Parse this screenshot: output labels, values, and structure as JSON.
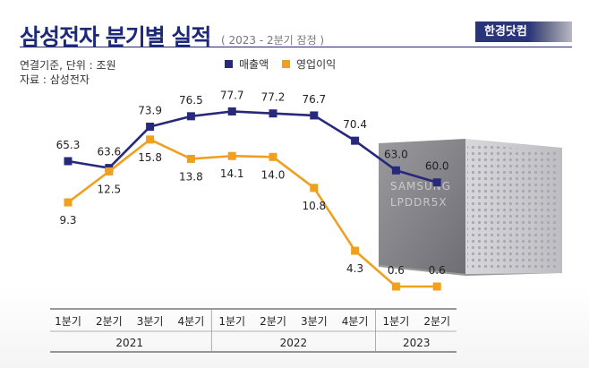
{
  "header": {
    "title": "삼성전자 분기별 실적",
    "subtitle": "( 2023 - 2분기 잠정 )",
    "brand": "한경닷컴",
    "note_basis": "연결기준, 단위 : 조원",
    "note_source": "자료 : 삼성전자"
  },
  "chip": {
    "maker": "SAMSUNG",
    "model": "LPDDR5X"
  },
  "colors": {
    "revenue": "#28297a",
    "profit": "#f0a020",
    "title": "#1e2a78"
  },
  "chart_data": {
    "type": "line",
    "categories": [
      "1분기",
      "2분기",
      "3분기",
      "4분기",
      "1분기",
      "2분기",
      "3분기",
      "4분기",
      "1분기",
      "2분기"
    ],
    "years": [
      {
        "label": "2021",
        "span": 4
      },
      {
        "label": "2022",
        "span": 4
      },
      {
        "label": "2023",
        "span": 2
      }
    ],
    "series": [
      {
        "name": "매출액",
        "values": [
          65.3,
          63.6,
          73.9,
          76.5,
          77.7,
          77.2,
          76.7,
          70.4,
          63.0,
          60.0
        ],
        "labels": [
          "65.3",
          "63.6",
          "73.9",
          "76.5",
          "77.7",
          "77.2",
          "76.7",
          "70.4",
          "63.0",
          "60.0"
        ]
      },
      {
        "name": "영업이익",
        "values": [
          9.3,
          12.5,
          15.8,
          13.8,
          14.1,
          14.0,
          10.8,
          4.3,
          0.6,
          0.6
        ],
        "labels": [
          "9.3",
          "12.5",
          "15.8",
          "13.8",
          "14.1",
          "14.0",
          "10.8",
          "4.3",
          "0.6",
          "0.6"
        ]
      }
    ],
    "legend": "top",
    "grid": false
  }
}
